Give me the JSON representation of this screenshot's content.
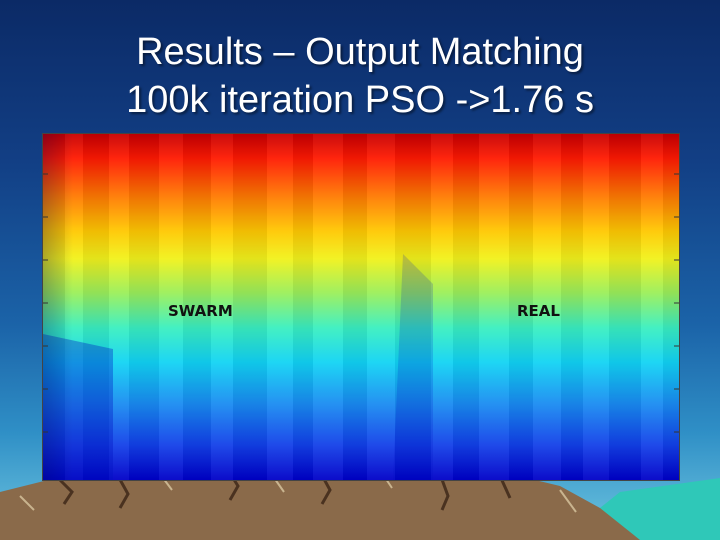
{
  "slide": {
    "title_line1": "Results – Output Matching",
    "title_line2": "100k iteration PSO ->1.76 s"
  },
  "plot": {
    "label_left": "SWARM",
    "label_right": "REAL"
  }
}
